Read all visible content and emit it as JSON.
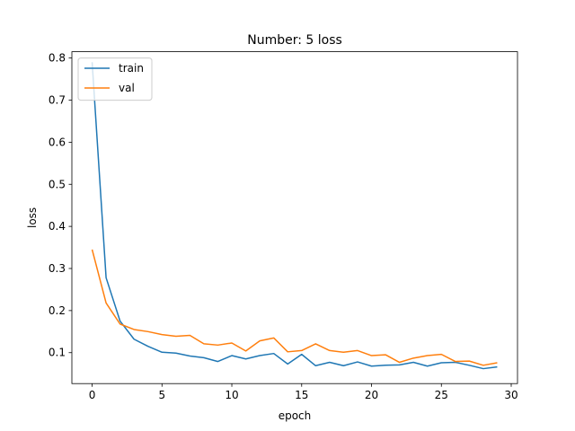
{
  "chart_data": {
    "type": "line",
    "title": "Number: 5 loss",
    "xlabel": "epoch",
    "ylabel": "loss",
    "xlim": [
      -1.45,
      30.45
    ],
    "ylim": [
      0.0265,
      0.815
    ],
    "xticks": [
      0,
      5,
      10,
      15,
      20,
      25,
      30
    ],
    "yticks": [
      0.1,
      0.2,
      0.3,
      0.4,
      0.5,
      0.6,
      0.7,
      0.8
    ],
    "grid": false,
    "legend": "upper left",
    "series": [
      {
        "name": "train",
        "color": "#1f77b4",
        "x": [
          0,
          1,
          2,
          3,
          4,
          5,
          6,
          7,
          8,
          9,
          10,
          11,
          12,
          13,
          14,
          15,
          16,
          17,
          18,
          19,
          20,
          21,
          22,
          23,
          24,
          25,
          26,
          27,
          28,
          29
        ],
        "values": [
          0.79,
          0.278,
          0.175,
          0.132,
          0.115,
          0.101,
          0.099,
          0.092,
          0.088,
          0.079,
          0.093,
          0.085,
          0.093,
          0.098,
          0.073,
          0.096,
          0.069,
          0.077,
          0.069,
          0.078,
          0.068,
          0.07,
          0.071,
          0.077,
          0.068,
          0.076,
          0.077,
          0.07,
          0.062,
          0.066
        ]
      },
      {
        "name": "val",
        "color": "#ff7f0e",
        "x": [
          0,
          1,
          2,
          3,
          4,
          5,
          6,
          7,
          8,
          9,
          10,
          11,
          12,
          13,
          14,
          15,
          16,
          17,
          18,
          19,
          20,
          21,
          22,
          23,
          24,
          25,
          26,
          27,
          28,
          29
        ],
        "values": [
          0.345,
          0.218,
          0.168,
          0.155,
          0.15,
          0.143,
          0.139,
          0.141,
          0.121,
          0.118,
          0.123,
          0.104,
          0.128,
          0.135,
          0.102,
          0.105,
          0.121,
          0.105,
          0.101,
          0.105,
          0.093,
          0.095,
          0.077,
          0.087,
          0.093,
          0.096,
          0.079,
          0.08,
          0.07,
          0.076
        ]
      }
    ]
  }
}
